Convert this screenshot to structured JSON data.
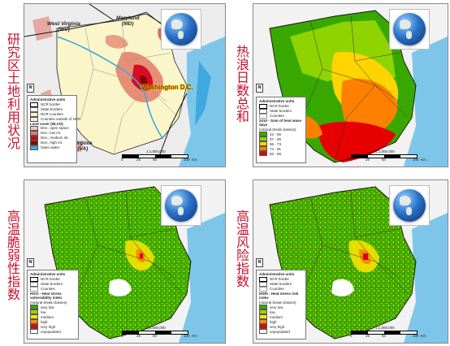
{
  "titles": {
    "top_left": "研究区土地利用状况",
    "top_right": "热浪日数总和",
    "bottom_left": "高温脆弱性指数",
    "bottom_right": "高温风险指数"
  },
  "common": {
    "admin_units": "Administrative units",
    "ncr_border": "NCR border",
    "state_borders": "State borders",
    "counties": "Counties",
    "scale_ratio": "1:1,000,000",
    "scale_ticks": [
      "0",
      "25",
      "50",
      "100"
    ],
    "scale_unit": "Km",
    "north": "N"
  },
  "panel_land": {
    "labels": {
      "west_virginia": "West Virginia",
      "west_virginia_abbr": "(WV)",
      "maryland": "Maryland",
      "maryland_abbr": "(MD)",
      "virginia": "Virginia",
      "virginia_abbr": "(VA)",
      "washington": "Washington D.C."
    },
    "legend": {
      "ncr_counties": "NCR counties",
      "counties_outside": "Counties outside of NCR",
      "title": "Land cover (NLCD)",
      "classes": [
        {
          "label": "Dev., open space",
          "color": "#e9c9c0"
        },
        {
          "label": "Dev., low int.",
          "color": "#e07b6a"
        },
        {
          "label": "Dev., medium int.",
          "color": "#d0001a"
        },
        {
          "label": "Dev., high int.",
          "color": "#8a0000"
        },
        {
          "label": "Open water",
          "color": "#3fa8e0"
        }
      ]
    }
  },
  "panel_heat": {
    "legend": {
      "title": "2010 - Sum of heat wave days",
      "subtitle": "(natural break classes)",
      "classes": [
        {
          "label": "42 - 56",
          "color": "#38a800"
        },
        {
          "label": "57 - 65",
          "color": "#8fd400"
        },
        {
          "label": "66 - 73",
          "color": "#ffd400"
        },
        {
          "label": "74 - 81",
          "color": "#ff8000"
        },
        {
          "label": "82 - 98",
          "color": "#e60000"
        }
      ]
    }
  },
  "panel_hsvi": {
    "legend": {
      "title": "HSVI - Heat stress vulnerability index",
      "subtitle": "(natural break classes)",
      "classes": [
        {
          "label": "very low",
          "color": "#38a800"
        },
        {
          "label": "low",
          "color": "#9bd600"
        },
        {
          "label": "medium",
          "color": "#ffe600"
        },
        {
          "label": "high",
          "color": "#ff8c00"
        },
        {
          "label": "very high",
          "color": "#e60000"
        },
        {
          "label": "unpopulated",
          "color": "#ffffff"
        }
      ]
    }
  },
  "panel_hsri": {
    "legend": {
      "title": "HSRI - Heat stress risk index",
      "subtitle": "(natural break classes)",
      "classes": [
        {
          "label": "very low",
          "color": "#38a800"
        },
        {
          "label": "low",
          "color": "#9bd600"
        },
        {
          "label": "medium",
          "color": "#ffe600"
        },
        {
          "label": "high",
          "color": "#ff8c00"
        },
        {
          "label": "very high",
          "color": "#e60000"
        },
        {
          "label": "unpopulated",
          "color": "#ffffff"
        }
      ]
    }
  }
}
